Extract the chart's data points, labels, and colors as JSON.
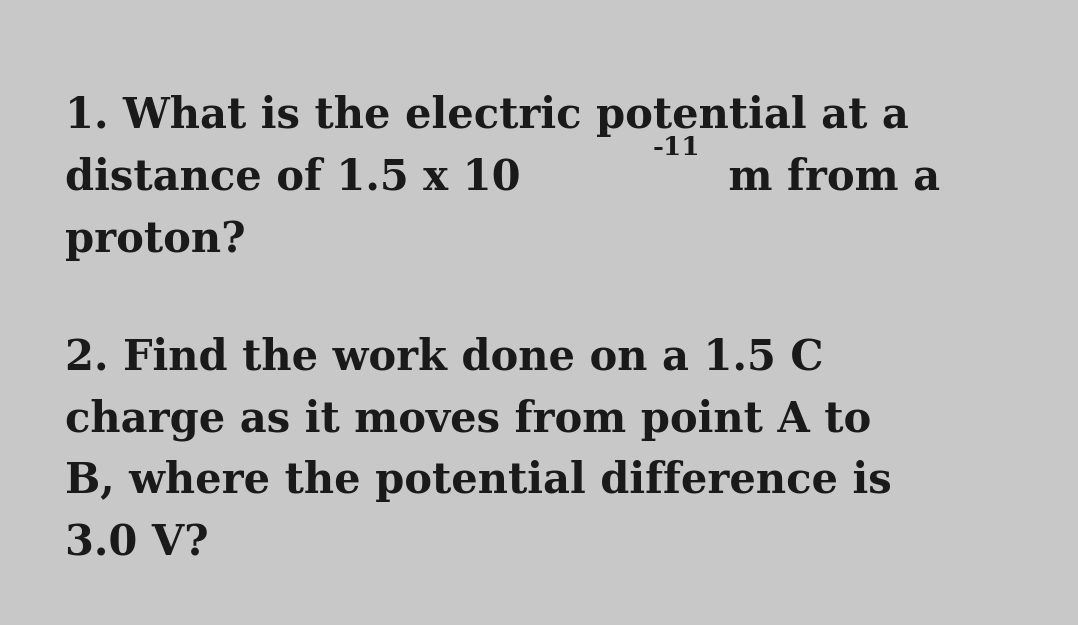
{
  "background_color": "#c8c8c8",
  "text_color": "#1a1a1a",
  "line1_q1": "1. What is the electric potential at a",
  "line2_q1_prefix": "distance of 1.5 x 10",
  "line2_q1_superscript": "-11",
  "line2_q1_suffix": " m from a",
  "line3_q1": "proton?",
  "line1_q2": "2. Find the work done on a 1.5 C",
  "line2_q2": "charge as it moves from point A to",
  "line3_q2": "B, where the potential difference is",
  "line4_q2": "3.0 V?",
  "font_size_main": 30,
  "font_size_super": 19,
  "font_weight": "bold",
  "font_family": "DejaVu Serif",
  "fig_width": 10.78,
  "fig_height": 6.25,
  "dpi": 100
}
